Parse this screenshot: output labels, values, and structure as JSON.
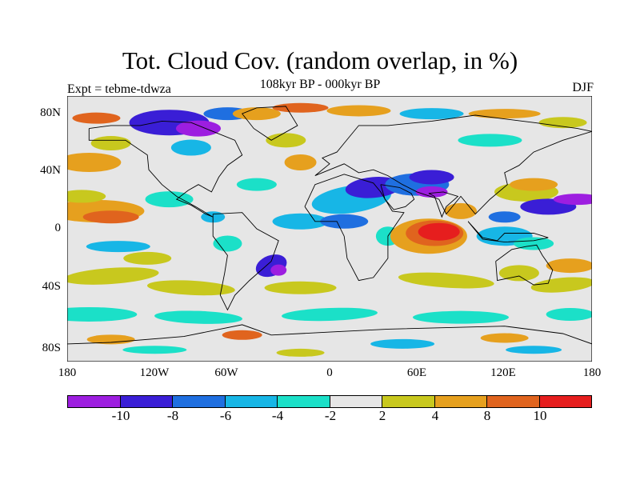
{
  "title": "Tot. Cloud Cov. (random overlap, in %)",
  "subtitle": "108kyr BP - 000kyr BP",
  "experiment": "Expt = tebme-tdwza",
  "season": "DJF",
  "map": {
    "projection": "cylindrical-equidistant",
    "lon_range": [
      -180,
      180
    ],
    "lat_range": [
      -90,
      90
    ],
    "lat_ticks": [
      "80N",
      "40N",
      "0",
      "40S",
      "80S"
    ],
    "lat_tick_values": [
      80,
      40,
      0,
      -40,
      -80
    ],
    "lon_ticks": [
      "180",
      "120W",
      "60W",
      "0",
      "60E",
      "120E",
      "180"
    ],
    "lon_tick_values": [
      -180,
      -120,
      -60,
      0,
      60,
      120,
      180
    ]
  },
  "colorbar": {
    "colors": [
      "#9d1ee0",
      "#3a1ed6",
      "#1f6fe0",
      "#17b6e6",
      "#1be0c8",
      "#e6e6e6",
      "#c8c81e",
      "#e6a01e",
      "#e0641e",
      "#e61e1e"
    ],
    "labels": [
      "-10",
      "-8",
      "-6",
      "-4",
      "-2",
      "2",
      "4",
      "8",
      "10"
    ],
    "levels": [
      -10,
      -8,
      -6,
      -4,
      -2,
      2,
      4,
      8,
      10
    ]
  }
}
